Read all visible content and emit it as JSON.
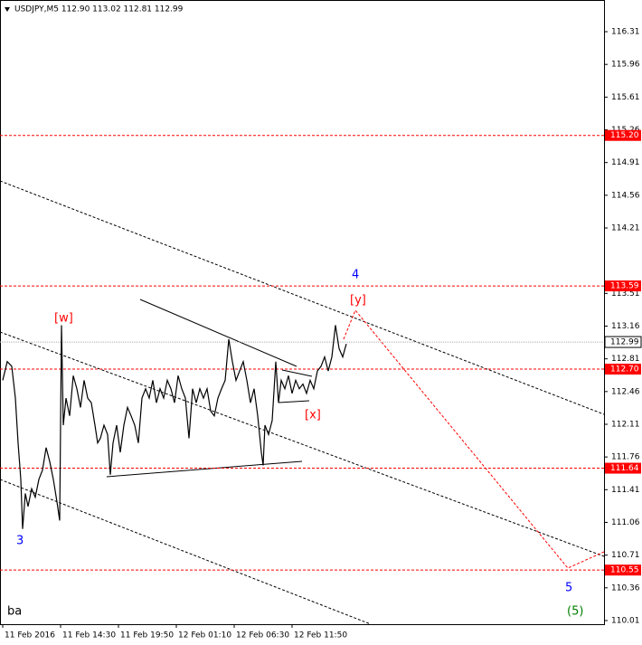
{
  "chart_data": {
    "type": "line",
    "title": "USDJPY,M5  112.90 113.02 112.81 112.99",
    "series": [
      {
        "name": "USDJPY",
        "color": "#000000",
        "x": [
          0,
          5,
          10,
          14,
          17,
          20,
          22,
          25,
          28,
          32,
          36,
          40,
          44,
          48,
          52,
          56,
          60,
          63,
          65,
          67,
          70,
          74,
          78,
          82,
          86,
          90,
          94,
          98,
          102,
          105,
          108,
          112,
          116,
          119,
          122,
          126,
          130,
          134,
          138,
          142,
          146,
          150,
          154,
          158,
          162,
          166,
          170,
          174,
          178,
          182,
          186,
          190,
          194,
          198,
          202,
          206,
          210,
          214,
          218,
          222,
          226,
          230,
          234,
          238,
          242,
          246,
          250,
          254,
          258,
          262,
          266,
          270,
          274,
          278,
          282,
          286,
          288,
          290,
          294,
          298,
          302,
          305,
          308,
          312,
          316,
          320,
          324,
          328,
          332,
          336,
          340,
          344,
          348,
          352,
          356,
          360,
          364,
          368,
          372,
          376,
          380
        ],
        "values": [
          112.58,
          112.78,
          112.73,
          112.39,
          111.91,
          111.52,
          110.99,
          111.37,
          111.23,
          111.42,
          111.33,
          111.52,
          111.62,
          111.86,
          111.71,
          111.52,
          111.28,
          111.08,
          113.17,
          112.1,
          112.39,
          112.2,
          112.63,
          112.49,
          112.29,
          112.58,
          112.39,
          112.34,
          112.1,
          111.91,
          111.96,
          112.1,
          112.0,
          111.57,
          111.91,
          112.1,
          111.81,
          112.1,
          112.29,
          112.2,
          112.1,
          111.91,
          112.39,
          112.49,
          112.39,
          112.58,
          112.34,
          112.49,
          112.39,
          112.58,
          112.49,
          112.34,
          112.63,
          112.49,
          112.39,
          111.96,
          112.49,
          112.34,
          112.49,
          112.39,
          112.49,
          112.25,
          112.2,
          112.39,
          112.49,
          112.58,
          113.02,
          112.78,
          112.58,
          112.68,
          112.78,
          112.58,
          112.34,
          112.49,
          112.2,
          111.81,
          111.67,
          112.1,
          112.0,
          112.15,
          112.78,
          112.34,
          112.58,
          112.49,
          112.63,
          112.44,
          112.58,
          112.49,
          112.54,
          112.44,
          112.58,
          112.49,
          112.68,
          112.73,
          112.83,
          112.68,
          112.83,
          113.17,
          112.92,
          112.83,
          112.97
        ]
      }
    ],
    "xlim": [
      -3,
      665
    ],
    "xticks": [
      {
        "value": 0,
        "label": "11 Feb 2016"
      },
      {
        "value": 64,
        "label": "11 Feb 14:30"
      },
      {
        "value": 128,
        "label": "11 Feb 19:50"
      },
      {
        "value": 192,
        "label": "12 Feb 01:10"
      },
      {
        "value": 256,
        "label": "12 Feb 06:30"
      },
      {
        "value": 320,
        "label": "12 Feb 11:50"
      }
    ],
    "ylim": [
      109.971,
      116.649
    ],
    "yticks": [
      116.31,
      115.96,
      115.61,
      115.26,
      114.91,
      114.56,
      114.21,
      113.51,
      113.16,
      112.81,
      112.46,
      112.11,
      111.76,
      111.41,
      111.06,
      110.71,
      110.36,
      110.01
    ],
    "levels": [
      {
        "value": 115.2,
        "label": "115.20"
      },
      113.59,
      {
        "value": 112.7,
        "label": "112.70"
      },
      111.64,
      110.55
    ],
    "level_color": "#ff0000",
    "current_price": 112.99,
    "annotations": [
      "[w]",
      "[x]",
      "[y]",
      "4",
      "3",
      "5",
      "(5)",
      "ba"
    ]
  }
}
